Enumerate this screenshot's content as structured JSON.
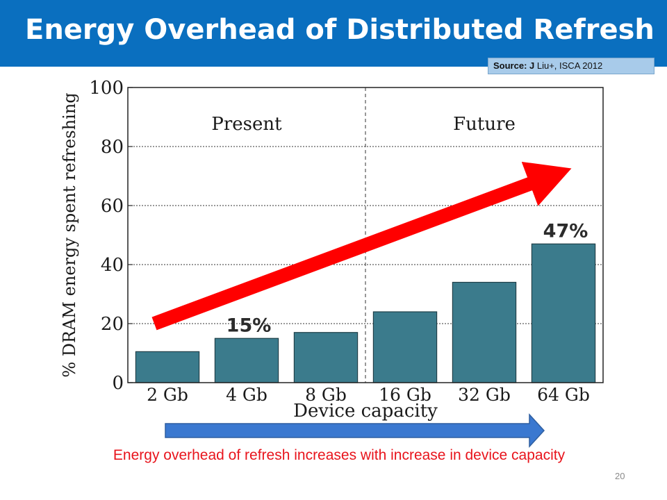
{
  "slide": {
    "title": "Energy Overhead of Distributed Refresh",
    "source_prefix": "Source: J",
    "source_rest": " Liu+, ISCA 2012",
    "caption": "Energy overhead of refresh increases with increase in device capacity",
    "page_number": "20"
  },
  "colors": {
    "title_bar": "#0a6fbf",
    "bar": "#3b7b8c",
    "red_arrow": "#ff0000",
    "blue_arrow": "#3a78d0",
    "caption": "#e8141c"
  },
  "chart_data": {
    "type": "bar",
    "categories": [
      "2 Gb",
      "4 Gb",
      "8 Gb",
      "16 Gb",
      "32 Gb",
      "64 Gb"
    ],
    "values": [
      10.5,
      15,
      17,
      24,
      34,
      47
    ],
    "xlabel": "Device capacity",
    "ylabel": "% DRAM energy spent refreshing",
    "ylim": [
      0,
      100
    ],
    "yticks": [
      0,
      20,
      40,
      60,
      80,
      100
    ],
    "grid": true,
    "regions": [
      {
        "label": "Present",
        "categories": [
          "2 Gb",
          "4 Gb",
          "8 Gb"
        ]
      },
      {
        "label": "Future",
        "categories": [
          "16 Gb",
          "32 Gb",
          "64 Gb"
        ]
      }
    ],
    "annotations": [
      {
        "text": "15%",
        "category": "4 Gb"
      },
      {
        "text": "47%",
        "category": "64 Gb"
      }
    ]
  }
}
